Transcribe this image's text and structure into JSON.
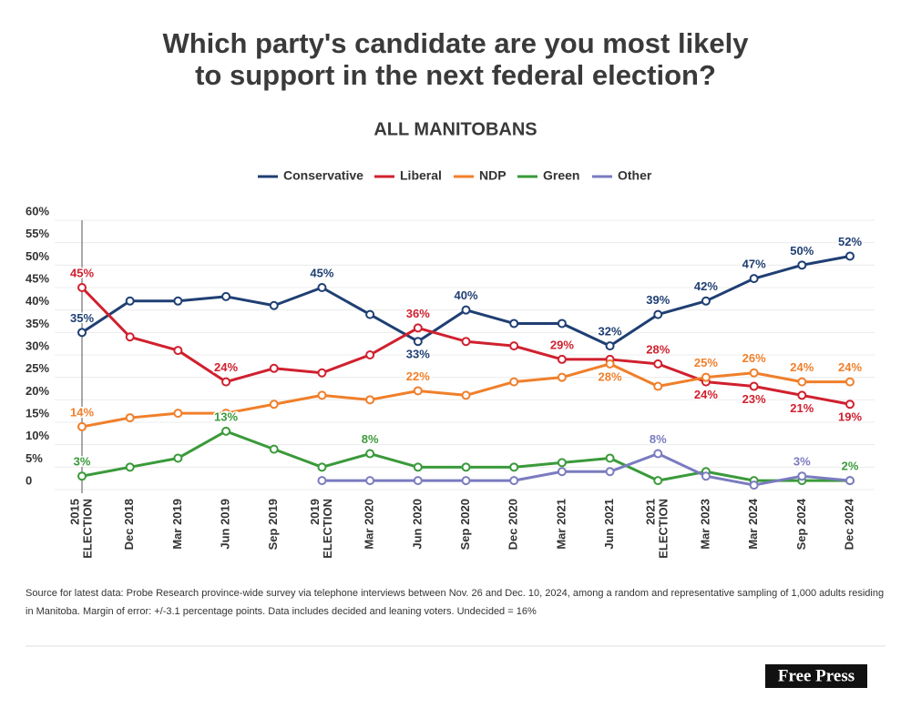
{
  "chart_data": {
    "type": "line",
    "title": [
      "Which party's candidate are you most likely",
      "to support in the next federal election?"
    ],
    "subtitle": "ALL MANITOBANS",
    "categories": [
      [
        "2015",
        "ELECTION"
      ],
      "Dec 2018",
      "Mar 2019",
      "Jun 2019",
      "Sep 2019",
      [
        "2019",
        "ELECTION"
      ],
      "Mar 2020",
      "Jun 2020",
      "Sep 2020",
      "Dec 2020",
      "Mar 2021",
      "Jun 2021",
      [
        "2021",
        "ELECTION"
      ],
      "Mar 2023",
      "Mar 2024",
      "Sep 2024",
      "Dec 2024"
    ],
    "ylim": [
      0,
      60
    ],
    "yticks": [
      0,
      {
        "value": 5,
        "label": "5%"
      },
      {
        "value": 10,
        "label": "10%"
      },
      {
        "value": 15,
        "label": "15%"
      },
      {
        "value": 20,
        "label": "20%"
      },
      {
        "value": 25,
        "label": "25%"
      },
      {
        "value": 30,
        "label": "30%"
      },
      {
        "value": 35,
        "label": "35%"
      },
      {
        "value": 40,
        "label": "40%"
      },
      {
        "value": 45,
        "label": "45%"
      },
      {
        "value": 50,
        "label": "50%"
      },
      {
        "value": 55,
        "label": "55%"
      },
      {
        "value": 60,
        "label": "60%"
      }
    ],
    "grid": true,
    "legend": "top",
    "series": [
      {
        "name": "Conservative",
        "color": "#1f3f73",
        "values": [
          35,
          42,
          42,
          43,
          41,
          45,
          39,
          33,
          40,
          37,
          37,
          32,
          39,
          42,
          47,
          50,
          52
        ],
        "value_labels": [
          "35%",
          null,
          null,
          null,
          null,
          "45%",
          null,
          "33%",
          "40%",
          null,
          null,
          "32%",
          "39%",
          "42%",
          "47%",
          "50%",
          "52%"
        ]
      },
      {
        "name": "Liberal",
        "color": "#d0202e",
        "values": [
          45,
          34,
          31,
          24,
          27,
          26,
          30,
          36,
          33,
          32,
          29,
          29,
          28,
          24,
          23,
          21,
          19
        ],
        "value_labels": [
          "45%",
          null,
          null,
          "24%",
          null,
          null,
          null,
          "36%",
          null,
          null,
          "29%",
          null,
          "28%",
          "24%",
          "23%",
          "21%",
          "19%"
        ]
      },
      {
        "name": "NDP",
        "color": "#f07f2a",
        "values": [
          14,
          16,
          17,
          17,
          19,
          21,
          20,
          22,
          21,
          24,
          25,
          28,
          23,
          25,
          26,
          24,
          24
        ],
        "value_labels": [
          "14%",
          null,
          null,
          null,
          null,
          null,
          null,
          "22%",
          null,
          null,
          null,
          "28%",
          null,
          "25%",
          "26%",
          "24%",
          "24%"
        ]
      },
      {
        "name": "Green",
        "color": "#3a9a3a",
        "values": [
          3,
          5,
          7,
          13,
          9,
          5,
          8,
          5,
          5,
          5,
          6,
          7,
          2,
          4,
          2,
          2,
          2
        ],
        "value_labels": [
          "3%",
          null,
          null,
          "13%",
          null,
          null,
          "8%",
          null,
          null,
          null,
          null,
          null,
          null,
          null,
          null,
          null,
          "2%"
        ]
      },
      {
        "name": "Other",
        "color": "#7b7bc0",
        "values": [
          null,
          null,
          null,
          null,
          null,
          2,
          2,
          2,
          2,
          2,
          4,
          4,
          8,
          3,
          1,
          3,
          2
        ],
        "value_labels": [
          null,
          null,
          null,
          null,
          null,
          null,
          null,
          null,
          null,
          null,
          null,
          null,
          "8%",
          null,
          null,
          "3%",
          null
        ]
      }
    ],
    "source": "Source for latest data: Probe Research province-wide survey via telephone interviews between Nov. 26 and Dec. 10, 2024, among a random and representative sampling of 1,000 adults residing in Manitoba.  Margin of error: +/-3.1 percentage points. Data includes decided and leaning voters. Undecided = 16%",
    "logo": "Free Press"
  }
}
